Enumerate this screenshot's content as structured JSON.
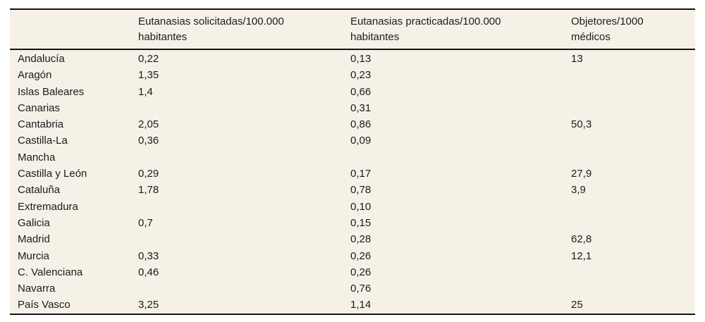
{
  "page": {
    "background_color": "#ffffff"
  },
  "table": {
    "background_color": "#f6f1e7",
    "rule_color": "#141414",
    "text_color": "#1b1b1b",
    "columns": [
      {
        "label": ""
      },
      {
        "label": "Eutanasias solicitadas/100.000 habitantes"
      },
      {
        "label": "Eutanasias practicadas/100.000 habitantes"
      },
      {
        "label": "Objetores/1000 médicos"
      }
    ],
    "rows": [
      {
        "region": "Andalucía",
        "solicitadas": "0,22",
        "practicadas": "0,13",
        "objetores": "13"
      },
      {
        "region": "Aragón",
        "solicitadas": "1,35",
        "practicadas": "0,23",
        "objetores": ""
      },
      {
        "region": "Islas Baleares",
        "solicitadas": "1,4",
        "practicadas": "0,66",
        "objetores": ""
      },
      {
        "region": "Canarias",
        "solicitadas": "",
        "practicadas": "0,31",
        "objetores": ""
      },
      {
        "region": "Cantabria",
        "solicitadas": "2,05",
        "practicadas": "0,86",
        "objetores": "50,3"
      },
      {
        "region": "Castilla-La Mancha",
        "solicitadas": "0,36",
        "practicadas": "0,09",
        "objetores": ""
      },
      {
        "region": "Castilla y León",
        "solicitadas": "0,29",
        "practicadas": "0,17",
        "objetores": "27,9"
      },
      {
        "region": "Cataluña",
        "solicitadas": "1,78",
        "practicadas": "0,78",
        "objetores": "3,9"
      },
      {
        "region": "Extremadura",
        "solicitadas": "",
        "practicadas": "0,10",
        "objetores": ""
      },
      {
        "region": "Galicia",
        "solicitadas": "0,7",
        "practicadas": "0,15",
        "objetores": ""
      },
      {
        "region": "Madrid",
        "solicitadas": "",
        "practicadas": "0,28",
        "objetores": "62,8"
      },
      {
        "region": "Murcia",
        "solicitadas": "0,33",
        "practicadas": "0,26",
        "objetores": "12,1"
      },
      {
        "region": "C. Valenciana",
        "solicitadas": "0,46",
        "practicadas": "0,26",
        "objetores": ""
      },
      {
        "region": "Navarra",
        "solicitadas": "",
        "practicadas": "0,76",
        "objetores": ""
      },
      {
        "region": "País Vasco",
        "solicitadas": "3,25",
        "practicadas": "1,14",
        "objetores": "25"
      }
    ]
  }
}
